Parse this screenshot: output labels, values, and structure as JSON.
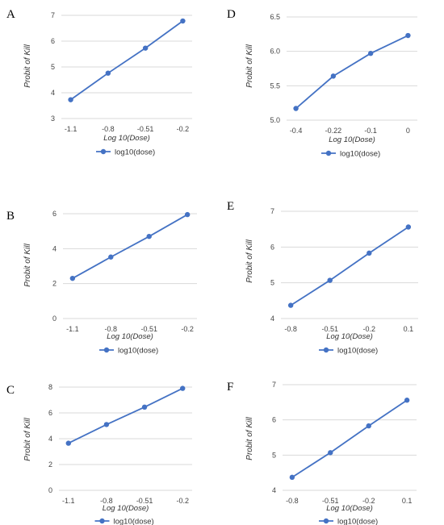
{
  "chart_data": [
    {
      "panel": "A",
      "type": "line",
      "categories": [
        "-1.1",
        "-0.8",
        "-0.51",
        "-0.2"
      ],
      "series": [
        {
          "name": "log10(dose)",
          "values": [
            3.73,
            4.76,
            5.73,
            6.78
          ]
        }
      ],
      "xlabel": "Log 10(Dose)",
      "ylabel": "Probit of Kill",
      "ylim": [
        3,
        7
      ],
      "yticks": [
        "3",
        "4",
        "5",
        "6",
        "7"
      ],
      "grid": true,
      "legend": "bottom"
    },
    {
      "panel": "D",
      "type": "line",
      "categories": [
        "-0.4",
        "-0.22",
        "-0.1",
        "0"
      ],
      "series": [
        {
          "name": "log10(dose)",
          "values": [
            5.17,
            5.64,
            5.97,
            6.23
          ]
        }
      ],
      "xlabel": "Log 10(Dose)",
      "ylabel": "Probit of Kill",
      "ylim": [
        5.0,
        6.5
      ],
      "yticks": [
        "5.0",
        "5.5",
        "6.0",
        "6.5"
      ],
      "grid": true,
      "legend": "bottom"
    },
    {
      "panel": "B",
      "type": "line",
      "categories": [
        "-1.1",
        "-0.8",
        "-0.51",
        "-0.2"
      ],
      "series": [
        {
          "name": "log10(dose)",
          "values": [
            2.3,
            3.52,
            4.7,
            5.95
          ]
        }
      ],
      "xlabel": "Log 10(Dose)",
      "ylabel": "Probit of Kill",
      "ylim": [
        0,
        6
      ],
      "yticks": [
        "0",
        "2",
        "4",
        "6"
      ],
      "grid": true,
      "legend": "bottom"
    },
    {
      "panel": "E",
      "type": "line",
      "categories": [
        "-0.8",
        "-0.51",
        "-0.2",
        "0.1"
      ],
      "series": [
        {
          "name": "log10(dose)",
          "values": [
            4.37,
            5.07,
            5.83,
            6.56
          ]
        }
      ],
      "xlabel": "Log 10(Dose)",
      "ylabel": "Probit of Kill",
      "ylim": [
        4,
        7
      ],
      "yticks": [
        "4",
        "5",
        "6",
        "7"
      ],
      "grid": true,
      "legend": "bottom"
    },
    {
      "panel": "C",
      "type": "line",
      "categories": [
        "-1.1",
        "-0.8",
        "-0.51",
        "-0.2"
      ],
      "series": [
        {
          "name": "log10(dose)",
          "values": [
            3.65,
            5.1,
            6.45,
            7.9
          ]
        }
      ],
      "xlabel": "Log 10(Dose)",
      "ylabel": "Probit of Kill",
      "ylim": [
        0,
        8
      ],
      "yticks": [
        "0",
        "2",
        "4",
        "6",
        "8"
      ],
      "grid": true,
      "legend": "bottom"
    },
    {
      "panel": "F",
      "type": "line",
      "categories": [
        "-0.8",
        "-0.51",
        "-0.2",
        "0.1"
      ],
      "series": [
        {
          "name": "log10(dose)",
          "values": [
            4.37,
            5.07,
            5.83,
            6.56
          ]
        }
      ],
      "xlabel": "Log 10(Dose)",
      "ylabel": "Probit of Kill",
      "ylim": [
        4,
        7
      ],
      "yticks": [
        "4",
        "5",
        "6",
        "7"
      ],
      "grid": true,
      "legend": "bottom"
    }
  ],
  "series_color": "#4472c4"
}
